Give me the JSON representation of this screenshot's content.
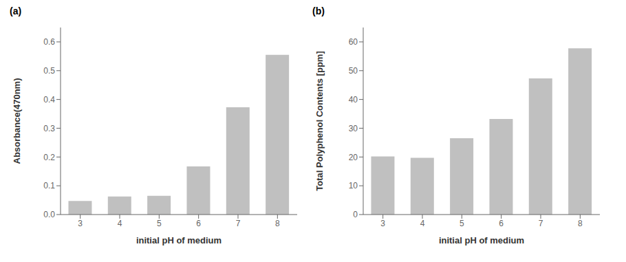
{
  "chart_data": [
    {
      "type": "bar",
      "title": "(a)",
      "categories": [
        "3",
        "4",
        "5",
        "6",
        "7",
        "8"
      ],
      "values": [
        0.047,
        0.063,
        0.065,
        0.167,
        0.373,
        0.555
      ],
      "xlabel": "initial pH of medium",
      "ylabel": "Absorbance(470nm)",
      "ylim": [
        0,
        0.65
      ],
      "yticks": [
        {
          "value": 0,
          "label": "0.0"
        },
        0.1,
        0.2,
        0.3,
        0.4,
        0.5,
        0.6
      ],
      "color": "#C0C0C0",
      "grid": false
    },
    {
      "type": "bar",
      "title": "(b)",
      "categories": [
        "3",
        "4",
        "5",
        "6",
        "7",
        "8"
      ],
      "values": [
        20.2,
        19.7,
        26.5,
        33.2,
        47.3,
        57.8
      ],
      "xlabel": "initial pH of medium",
      "ylabel": "Total Polyphenol Contents [ppm]",
      "ylim": [
        0,
        65
      ],
      "yticks": [
        0,
        10,
        20,
        30,
        40,
        50,
        60
      ],
      "color": "#C0C0C0",
      "grid": false
    }
  ]
}
